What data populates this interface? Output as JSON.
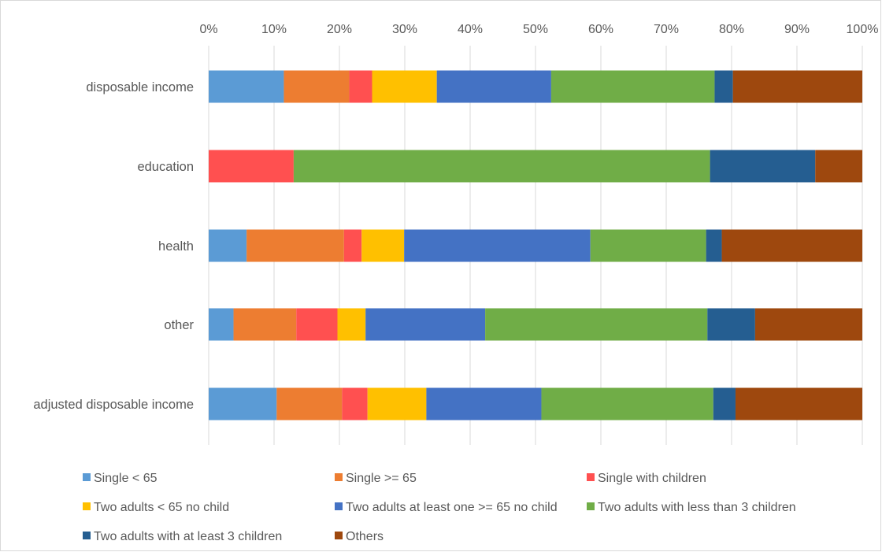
{
  "chart_data": {
    "type": "bar",
    "orientation": "horizontal",
    "stacked": true,
    "percent_stacked": true,
    "categories": [
      "disposable income",
      "education",
      "health",
      "other",
      "adjusted disposable income"
    ],
    "x_ticks": [
      "0%",
      "10%",
      "20%",
      "30%",
      "40%",
      "50%",
      "60%",
      "70%",
      "80%",
      "90%",
      "100%"
    ],
    "xlim": [
      0,
      100
    ],
    "x_axis_position": "top",
    "grid": true,
    "legend_position": "bottom",
    "series": [
      {
        "name": "Single < 65",
        "color": "#5b9bd5",
        "values": [
          11.5,
          0.0,
          5.8,
          3.8,
          10.4
        ]
      },
      {
        "name": "Single >= 65",
        "color": "#ed7d31",
        "values": [
          10.0,
          0.0,
          14.9,
          9.6,
          10.0
        ]
      },
      {
        "name": "Single with children",
        "color": "#ff5050",
        "values": [
          3.5,
          13.0,
          2.7,
          6.3,
          3.9
        ]
      },
      {
        "name": "Two adults < 65 no child",
        "color": "#ffc000",
        "values": [
          9.9,
          0.0,
          6.5,
          4.3,
          9.0
        ]
      },
      {
        "name": "Two adults at least one >= 65 no child",
        "color": "#4472c4",
        "values": [
          17.5,
          0.0,
          28.5,
          18.3,
          17.6
        ]
      },
      {
        "name": "Two adults with less than 3 children",
        "color": "#70ad47",
        "values": [
          25.0,
          63.7,
          17.7,
          34.0,
          26.3
        ]
      },
      {
        "name": "Two adults with at least 3 children",
        "color": "#255e91",
        "values": [
          2.8,
          16.1,
          2.4,
          7.3,
          3.4
        ]
      },
      {
        "name": "Others",
        "color": "#9e480e",
        "values": [
          19.8,
          7.2,
          21.5,
          16.4,
          19.4
        ]
      }
    ]
  }
}
